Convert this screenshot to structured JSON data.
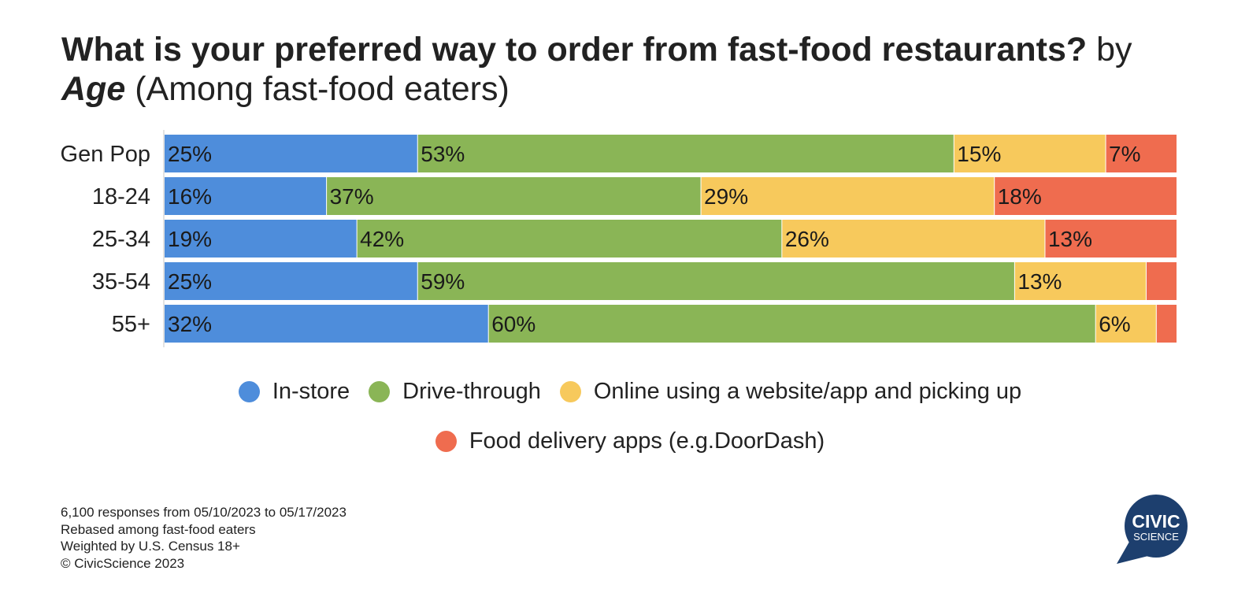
{
  "title": {
    "question": "What is your preferred way to order from fast-food restaurants?",
    "by": "by",
    "group": "Age",
    "subtitle": "(Among fast-food eaters)"
  },
  "chart_data": {
    "type": "bar",
    "orientation": "horizontal",
    "stacked": true,
    "categories": [
      "Gen Pop",
      "18-24",
      "25-34",
      "35-54",
      "55+"
    ],
    "series": [
      {
        "name": "In-store",
        "color": "#4e8ddb",
        "values": [
          25,
          16,
          19,
          25,
          32
        ],
        "labels": [
          "25%",
          "16%",
          "19%",
          "25%",
          "32%"
        ]
      },
      {
        "name": "Drive-through",
        "color": "#8ab556",
        "values": [
          53,
          37,
          42,
          59,
          60
        ],
        "labels": [
          "53%",
          "37%",
          "42%",
          "59%",
          "60%"
        ]
      },
      {
        "name": "Online using a website/app and picking up",
        "color": "#f7c95c",
        "values": [
          15,
          29,
          26,
          13,
          6
        ],
        "labels": [
          "15%",
          "29%",
          "26%",
          "13%",
          "6%"
        ]
      },
      {
        "name": "Food delivery apps (e.g.DoorDash)",
        "color": "#ef6c4f",
        "values": [
          7,
          18,
          13,
          3,
          2
        ],
        "labels": [
          "7%",
          "18%",
          "13%",
          "",
          ""
        ]
      }
    ],
    "xlim": [
      0,
      100
    ],
    "grid": false,
    "legend_position": "bottom"
  },
  "footnotes": [
    "6,100 responses from 05/10/2023 to 05/17/2023",
    "Rebased among fast-food eaters",
    "Weighted by U.S. Census 18+",
    "© CivicScience 2023"
  ],
  "logo": {
    "line1": "CIVIC",
    "line2": "SCIENCE",
    "color": "#1d3f6e"
  }
}
